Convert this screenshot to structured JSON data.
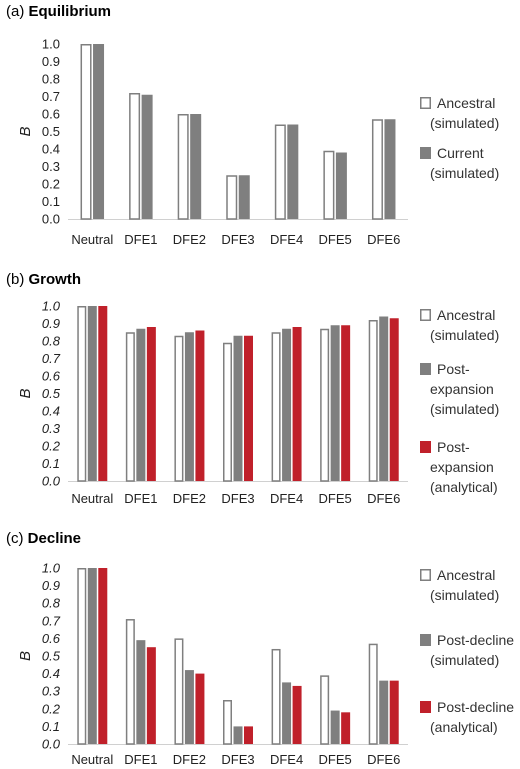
{
  "chart_data": [
    {
      "type": "bar",
      "panel": "(a)",
      "title": "Equilibrium",
      "ylabel": "B",
      "ylim": [
        0,
        1.0
      ],
      "yticks": [
        "0.0",
        "0.1",
        "0.2",
        "0.3",
        "0.4",
        "0.5",
        "0.6",
        "0.7",
        "0.8",
        "0.9",
        "1.0"
      ],
      "italic_ticks": false,
      "categories": [
        "Neutral",
        "DFE1",
        "DFE2",
        "DFE3",
        "DFE4",
        "DFE5",
        "DFE6"
      ],
      "series": [
        {
          "name": "Ancestral (simulated)",
          "legend_lines": [
            "Ancestral",
            "(simulated)"
          ],
          "style": "outline",
          "color": "#7f7f7f",
          "values": [
            1.0,
            0.72,
            0.6,
            0.25,
            0.54,
            0.39,
            0.57
          ]
        },
        {
          "name": "Current (simulated)",
          "legend_lines": [
            "Current",
            "(simulated)"
          ],
          "style": "filled",
          "color": "#7f7f7f",
          "values": [
            1.0,
            0.71,
            0.6,
            0.25,
            0.54,
            0.38,
            0.57
          ]
        }
      ]
    },
    {
      "type": "bar",
      "panel": "(b)",
      "title": "Growth",
      "ylabel": "B",
      "ylim": [
        0,
        1.0
      ],
      "yticks": [
        "0.0",
        "0.1",
        "0.2",
        "0.3",
        "0.4",
        "0.5",
        "0.6",
        "0.7",
        "0.8",
        "0.9",
        "1.0"
      ],
      "italic_ticks": true,
      "categories": [
        "Neutral",
        "DFE1",
        "DFE2",
        "DFE3",
        "DFE4",
        "DFE5",
        "DFE6"
      ],
      "series": [
        {
          "name": "Ancestral (simulated)",
          "legend_lines": [
            "Ancestral",
            "(simulated)"
          ],
          "style": "outline",
          "color": "#7f7f7f",
          "values": [
            1.0,
            0.85,
            0.83,
            0.79,
            0.85,
            0.87,
            0.92
          ]
        },
        {
          "name": "Post-expansion (simulated)",
          "legend_lines": [
            "Post-",
            "expansion",
            "(simulated)"
          ],
          "style": "filled",
          "color": "#7f7f7f",
          "values": [
            1.0,
            0.87,
            0.85,
            0.83,
            0.87,
            0.89,
            0.94
          ]
        },
        {
          "name": "Post-expansion (analytical)",
          "legend_lines": [
            "Post-",
            "expansion",
            "(analytical)"
          ],
          "style": "filled",
          "color": "#c0202a",
          "values": [
            1.0,
            0.88,
            0.86,
            0.83,
            0.88,
            0.89,
            0.93
          ]
        }
      ]
    },
    {
      "type": "bar",
      "panel": "(c)",
      "title": "Decline",
      "ylabel": "B",
      "ylim": [
        0,
        1.0
      ],
      "yticks": [
        "0.0",
        "0.1",
        "0.2",
        "0.3",
        "0.4",
        "0.5",
        "0.6",
        "0.7",
        "0.8",
        "0.9",
        "1.0"
      ],
      "italic_ticks": true,
      "categories": [
        "Neutral",
        "DFE1",
        "DFE2",
        "DFE3",
        "DFE4",
        "DFE5",
        "DFE6"
      ],
      "series": [
        {
          "name": "Ancestral (simulated)",
          "legend_lines": [
            "Ancestral",
            "(simulated)"
          ],
          "style": "outline",
          "color": "#7f7f7f",
          "values": [
            1.0,
            0.71,
            0.6,
            0.25,
            0.54,
            0.39,
            0.57
          ]
        },
        {
          "name": "Post-decline (simulated)",
          "legend_lines": [
            "Post-decline",
            "(simulated)"
          ],
          "style": "filled",
          "color": "#7f7f7f",
          "values": [
            1.0,
            0.59,
            0.42,
            0.1,
            0.35,
            0.19,
            0.36
          ]
        },
        {
          "name": "Post-decline (analytical)",
          "legend_lines": [
            "Post-decline",
            "(analytical)"
          ],
          "style": "filled",
          "color": "#c0202a",
          "values": [
            1.0,
            0.55,
            0.4,
            0.1,
            0.33,
            0.18,
            0.36
          ]
        }
      ]
    }
  ]
}
